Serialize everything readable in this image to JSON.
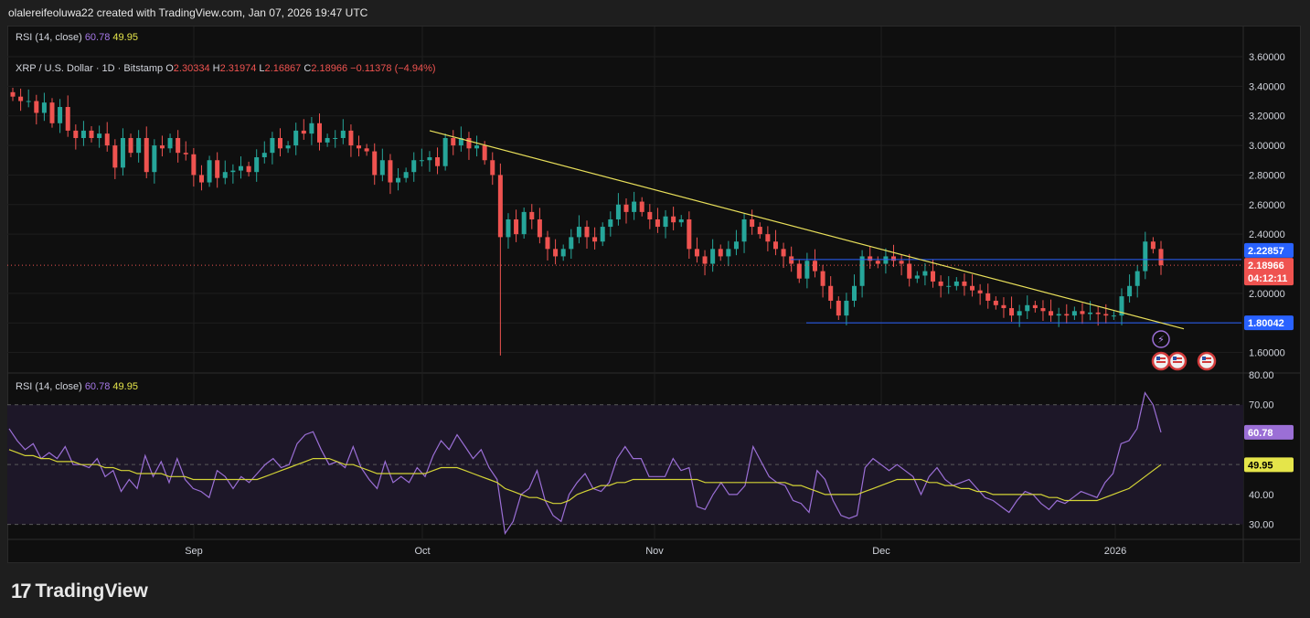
{
  "header": {
    "credit": "olalereifeoluwa22 created with TradingView.com, Jan 07, 2026 19:47 UTC"
  },
  "rsi_top_legend": {
    "label": "RSI (14, close)",
    "rsi": "60.78",
    "ma": "49.95"
  },
  "price_legend": {
    "symbol": "XRP / U.S. Dollar · 1D · Bitstamp",
    "o_label": "O",
    "o": "2.30334",
    "h_label": "H",
    "h": "2.31974",
    "l_label": "L",
    "l": "2.16867",
    "c_label": "C",
    "c": "2.18966",
    "change": "−0.11378 (−4.94%)"
  },
  "rsi_legend": {
    "label": "RSI (14, close)",
    "rsi": "60.78",
    "ma": "49.95"
  },
  "price_axis": [
    "3.60000",
    "3.40000",
    "3.20000",
    "3.00000",
    "2.80000",
    "2.60000",
    "2.40000",
    "2.00000",
    "1.80000",
    "1.60000"
  ],
  "rsi_axis": [
    "80.00",
    "70.00",
    "40.00",
    "30.00"
  ],
  "time_axis": [
    "Sep",
    "Oct",
    "Nov",
    "Dec",
    "2026"
  ],
  "tags": {
    "upper_level": "2.22857",
    "last_price": "2.18966",
    "countdown": "04:12:11",
    "lower_level": "1.80042",
    "rsi": "60.78",
    "rsi_ma": "49.95"
  },
  "colors": {
    "up": "#26a69a",
    "down": "#ef5350",
    "trendline": "#e8df5a",
    "level": "#2962ff",
    "rsi": "#9b6fd6",
    "rsi_ma": "#d4d436"
  },
  "footer": {
    "brand": "TradingView",
    "mark": "17"
  },
  "chart_data": [
    {
      "type": "candlestick",
      "title": "XRP / U.S. Dollar · 1D · Bitstamp",
      "ylim": [
        1.48,
        3.6
      ],
      "ylabel": "",
      "x_ticks": [
        "Sep",
        "Oct",
        "Nov",
        "Dec",
        "2026"
      ],
      "x_range_days": [
        "2025-08-04",
        "2026-01-07"
      ],
      "ohlc_close_series": [
        3.33,
        3.3,
        3.3,
        3.22,
        3.29,
        3.15,
        3.26,
        3.1,
        3.05,
        3.1,
        3.05,
        3.08,
        3.0,
        2.85,
        3.05,
        2.95,
        3.05,
        2.82,
        3.0,
        2.98,
        3.05,
        2.95,
        2.94,
        2.8,
        2.75,
        2.9,
        2.78,
        2.82,
        2.83,
        2.86,
        2.82,
        2.92,
        2.95,
        3.05,
        2.98,
        3.0,
        3.1,
        3.08,
        3.15,
        3.02,
        3.05,
        3.05,
        3.1,
        3.0,
        2.98,
        2.96,
        2.8,
        2.9,
        2.75,
        2.78,
        2.82,
        2.9,
        2.9,
        2.92,
        2.86,
        3.05,
        3.0,
        3.05,
        2.98,
        3.0,
        2.9,
        2.8,
        2.38,
        2.5,
        2.4,
        2.55,
        2.5,
        2.38,
        2.3,
        2.25,
        2.3,
        2.38,
        2.45,
        2.38,
        2.35,
        2.45,
        2.5,
        2.6,
        2.55,
        2.62,
        2.55,
        2.5,
        2.45,
        2.52,
        2.48,
        2.5,
        2.3,
        2.25,
        2.2,
        2.3,
        2.25,
        2.3,
        2.35,
        2.5,
        2.45,
        2.4,
        2.35,
        2.3,
        2.25,
        2.2,
        2.1,
        2.22,
        2.15,
        2.05,
        1.95,
        1.85,
        1.95,
        2.05,
        2.25,
        2.22,
        2.2,
        2.25,
        2.22,
        2.2,
        2.1,
        2.12,
        2.15,
        2.08,
        2.05,
        2.05,
        2.08,
        2.05,
        2.02,
        2.0,
        1.95,
        1.92,
        1.9,
        1.85,
        1.88,
        1.92,
        1.9,
        1.88,
        1.85,
        1.86,
        1.85,
        1.88,
        1.86,
        1.87,
        1.86,
        1.85,
        1.85,
        1.98,
        2.05,
        2.15,
        2.35,
        2.3,
        2.19
      ],
      "levels": {
        "upper": 2.22857,
        "lower": 1.80042,
        "last": 2.18966
      }
    },
    {
      "type": "line",
      "title": "RSI (14, close)",
      "ylim": [
        25,
        80
      ],
      "series": [
        {
          "name": "RSI (14, close)",
          "values": [
            62,
            58,
            55,
            57,
            52,
            54,
            52,
            56,
            50,
            50,
            49,
            52,
            46,
            48,
            41,
            45,
            42,
            53,
            46,
            51,
            44,
            52,
            45,
            42,
            41,
            39,
            48,
            46,
            42,
            46,
            44,
            47,
            50,
            52,
            49,
            50,
            57,
            60,
            61,
            55,
            50,
            51,
            49,
            56,
            49,
            45,
            42,
            51,
            44,
            46,
            44,
            49,
            46,
            53,
            58,
            55,
            60,
            56,
            52,
            55,
            49,
            45,
            27,
            31,
            40,
            42,
            48,
            38,
            33,
            31,
            40,
            44,
            47,
            42,
            41,
            44,
            52,
            56,
            52,
            52,
            46,
            46,
            46,
            52,
            48,
            49,
            36,
            35,
            40,
            44,
            40,
            40,
            43,
            56,
            51,
            46,
            44,
            43,
            38,
            37,
            34,
            48,
            45,
            38,
            33,
            32,
            33,
            49,
            52,
            50,
            48,
            50,
            48,
            46,
            40,
            46,
            49,
            45,
            43,
            44,
            45,
            42,
            39,
            38,
            36,
            34,
            38,
            41,
            40,
            37,
            35,
            38,
            37,
            39,
            41,
            40,
            39,
            44,
            47,
            57,
            58,
            62,
            74,
            70,
            60.78
          ]
        },
        {
          "name": "MA",
          "values": [
            55,
            54,
            53,
            53,
            52,
            52,
            51,
            51,
            51,
            50,
            50,
            50,
            49,
            49,
            48,
            48,
            47,
            47,
            47,
            47,
            46,
            46,
            46,
            45,
            45,
            45,
            45,
            45,
            45,
            45,
            45,
            45,
            46,
            47,
            48,
            49,
            50,
            51,
            52,
            52,
            52,
            51,
            50,
            50,
            49,
            48,
            47,
            47,
            47,
            47,
            47,
            47,
            47,
            48,
            49,
            49,
            49,
            48,
            47,
            46,
            45,
            44,
            42,
            41,
            40,
            39,
            39,
            38,
            37,
            37,
            38,
            40,
            41,
            42,
            43,
            43,
            44,
            44,
            45,
            45,
            45,
            45,
            45,
            45,
            45,
            45,
            45,
            44,
            44,
            44,
            44,
            44,
            44,
            44,
            44,
            44,
            44,
            44,
            43,
            43,
            42,
            41,
            40,
            40,
            40,
            40,
            40,
            41,
            42,
            43,
            44,
            45,
            45,
            45,
            45,
            44,
            44,
            43,
            43,
            42,
            42,
            41,
            41,
            40,
            40,
            40,
            40,
            40,
            40,
            40,
            39,
            39,
            38,
            38,
            38,
            38,
            38,
            39,
            40,
            41,
            42,
            44,
            46,
            48,
            49.95
          ]
        }
      ],
      "reference_lines": [
        70,
        50,
        30
      ]
    }
  ]
}
